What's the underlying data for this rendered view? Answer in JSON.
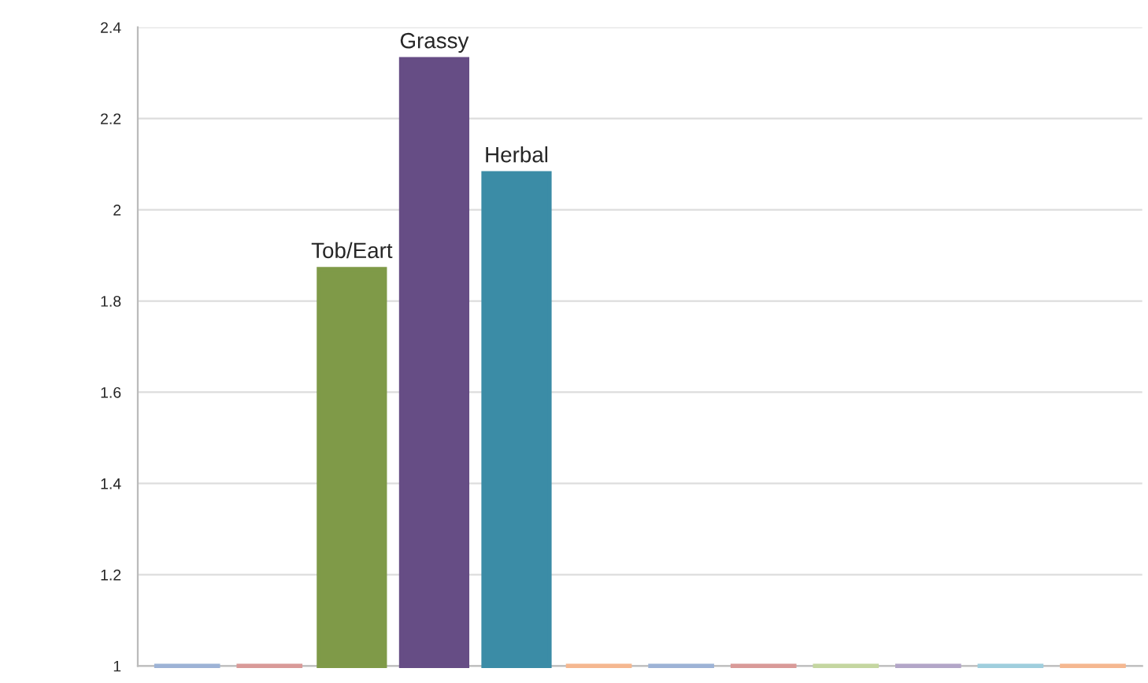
{
  "chart_data": {
    "type": "bar",
    "categories": [
      null,
      null,
      "Tob/Eart",
      "Grassy",
      "Herbal",
      null,
      null,
      null,
      null,
      null,
      null,
      null
    ],
    "values": [
      1,
      1,
      1.87,
      2.33,
      2.08,
      1,
      1,
      1,
      1,
      1,
      1,
      1
    ],
    "colors": [
      "#9db3d6",
      "#d99a98",
      "#7f9a48",
      "#664d85",
      "#3b8ca6",
      "#f5b890",
      "#9db3d6",
      "#d99a98",
      "#c4d6a0",
      "#b3a6c8",
      "#9fcedd",
      "#f5b890"
    ],
    "ylim": [
      1,
      2.4
    ],
    "yticks": [
      1,
      1.2,
      1.4,
      1.6,
      1.8,
      2,
      2.2,
      2.4
    ],
    "grid": "y",
    "tick_labels": "y"
  }
}
